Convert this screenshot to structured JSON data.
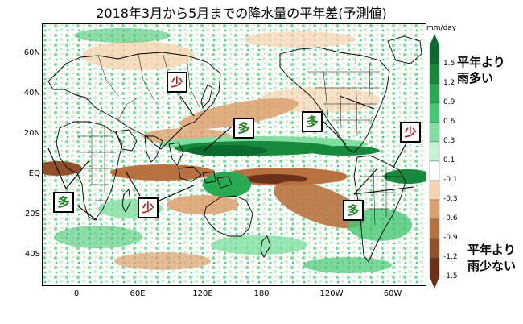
{
  "title": "2018年3月から5月までの降水量の平年差(予測値)",
  "units": "mm/day",
  "lat_labels": [
    "60N",
    "40N",
    "20N",
    "EQ",
    "20S",
    "40S"
  ],
  "lon_labels": [
    "0",
    "60E",
    "120E",
    "180",
    "120W",
    "60W"
  ],
  "colorbar": {
    "labels": [
      "1.5",
      "1.2",
      "0.9",
      "0.6",
      "0.3",
      "0.1",
      "-0.1",
      "-0.3",
      "-0.6",
      "-0.9",
      "-1.2",
      "-1.5"
    ],
    "colors": [
      "#0b6b2e",
      "#17893d",
      "#2aa954",
      "#46c774",
      "#7fdea0",
      "#c5f2d2",
      "#ffffff",
      "#f6d3b0",
      "#dca06e",
      "#b8723f",
      "#92502a",
      "#6d3019"
    ]
  },
  "legend_wet": {
    "line1": "平年より",
    "line2": "雨多い"
  },
  "legend_dry": {
    "line1": "平年より",
    "line2": "雨少ない"
  },
  "callouts": [
    {
      "name": "callout-less-east-asia",
      "text": "少",
      "type": "less"
    },
    {
      "name": "callout-more-western-pacific",
      "text": "多",
      "type": "more"
    },
    {
      "name": "callout-more-north-america",
      "text": "多",
      "type": "more"
    },
    {
      "name": "callout-less-caribbean",
      "text": "少",
      "type": "less"
    },
    {
      "name": "callout-more-africa",
      "text": "多",
      "type": "more"
    },
    {
      "name": "callout-less-indian-ocean",
      "text": "少",
      "type": "less"
    },
    {
      "name": "callout-more-south-america",
      "text": "多",
      "type": "more"
    }
  ]
}
